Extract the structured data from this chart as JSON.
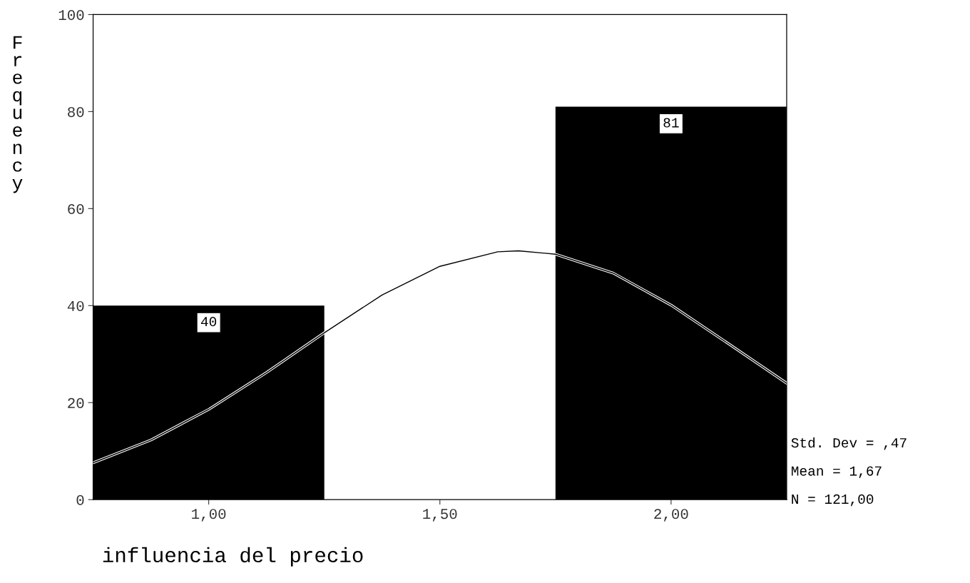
{
  "chart_data": {
    "type": "histogram",
    "bins": [
      0.75,
      1.25,
      1.75,
      2.25
    ],
    "values": [
      40,
      0,
      81
    ],
    "color": "#000000",
    "value_labels": [
      "40",
      null,
      "81"
    ],
    "series": [
      {
        "type": "line",
        "color": "#000000",
        "x": [
          0.75,
          0.875,
          1.0,
          1.125,
          1.25,
          1.375,
          1.5,
          1.625,
          1.67,
          1.75,
          1.875,
          2.0,
          2.125,
          2.25
        ],
        "values": [
          7.6,
          12.3,
          18.6,
          26.2,
          34.4,
          42.2,
          48.1,
          51.1,
          51.3,
          50.6,
          46.7,
          40.1,
          32.1,
          24.0
        ]
      }
    ],
    "xlabel": "influencia del precio",
    "ylabel": "Frequency",
    "xlim": [
      0.75,
      2.25
    ],
    "xticks": [
      {
        "value": 1.0,
        "label": "1,00"
      },
      {
        "value": 1.5,
        "label": "1,50"
      },
      {
        "value": 2.0,
        "label": "2,00"
      }
    ],
    "ylim": [
      0,
      100
    ],
    "yticks": [
      0,
      20,
      40,
      60,
      80,
      100
    ],
    "grid": false,
    "annotations": [
      "Std. Dev = ,47",
      "Mean = 1,67",
      "N = 121,00"
    ]
  }
}
